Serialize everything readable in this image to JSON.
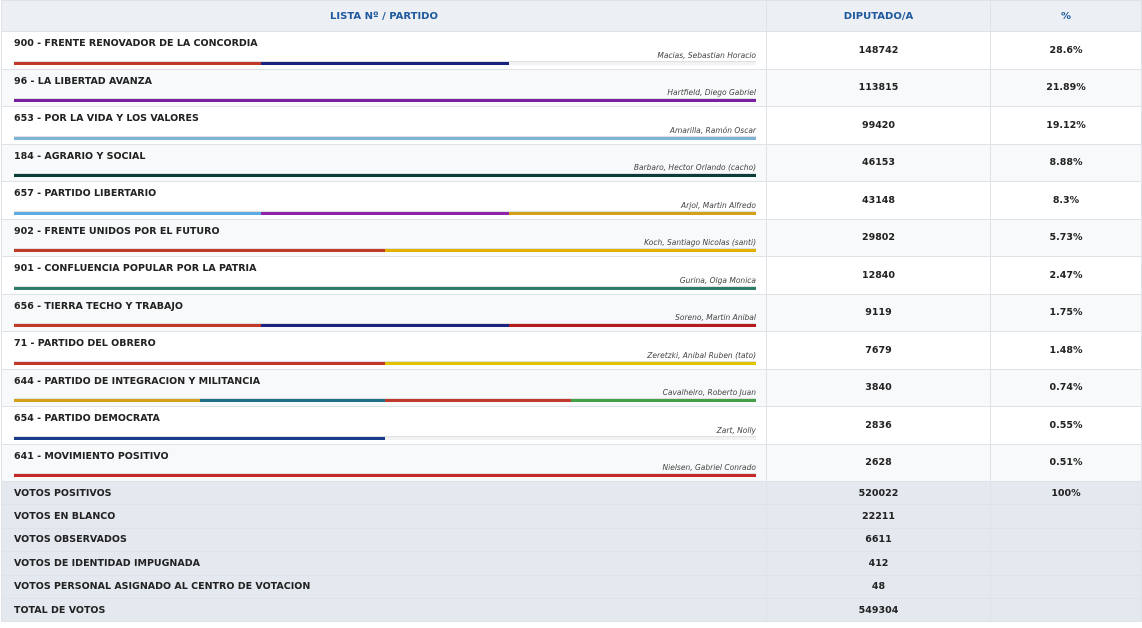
{
  "headers": {
    "party": "LISTA Nº / PARTIDO",
    "deputy": "DIPUTADO/A",
    "pct": "%"
  },
  "parties": [
    {
      "name": "900 - FRENTE RENOVADOR DE LA CONCORDIA",
      "candidate": "Macias, Sebastian Horacio",
      "votes": "148742",
      "pct": "28.6%",
      "colors": [
        "#c0392b",
        "#1a237e",
        "#f2f2f2"
      ]
    },
    {
      "name": "96 - LA LIBERTAD AVANZA",
      "candidate": "Hartfield, Diego Gabriel",
      "votes": "113815",
      "pct": "21.89%",
      "colors": [
        "#7b1fa2"
      ]
    },
    {
      "name": "653 - POR LA VIDA Y LOS VALORES",
      "candidate": "Amarilla, Ramón Oscar",
      "votes": "99420",
      "pct": "19.12%",
      "colors": [
        "#7fb3d5"
      ]
    },
    {
      "name": "184 - AGRARIO Y SOCIAL",
      "candidate": "Barbaro, Hector Orlando (cacho)",
      "votes": "46153",
      "pct": "8.88%",
      "colors": [
        "#0b3d3b"
      ]
    },
    {
      "name": "657 - PARTIDO LIBERTARIO",
      "candidate": "Arjol, Martin Alfredo",
      "votes": "43148",
      "pct": "8.3%",
      "colors": [
        "#5dade2",
        "#8e24aa",
        "#d4a017"
      ]
    },
    {
      "name": "902 - FRENTE UNIDOS POR EL FUTURO",
      "candidate": "Koch, Santiago Nicolas (santi)",
      "votes": "29802",
      "pct": "5.73%",
      "colors": [
        "#c0392b",
        "#e1b000"
      ]
    },
    {
      "name": "901 - CONFLUENCIA POPULAR POR LA PATRIA",
      "candidate": "Gurina, Olga Monica",
      "votes": "12840",
      "pct": "2.47%",
      "colors": [
        "#2e7d6b"
      ]
    },
    {
      "name": "656 - TIERRA TECHO Y TRABAJO",
      "candidate": "Soreno, Martin Anibal",
      "votes": "9119",
      "pct": "1.75%",
      "colors": [
        "#c0392b",
        "#1a237e",
        "#b71c1c"
      ]
    },
    {
      "name": "71 - PARTIDO DEL OBRERO",
      "candidate": "Zeretzki, Anibal Ruben (tato)",
      "votes": "7679",
      "pct": "1.48%",
      "colors": [
        "#c0392b",
        "#e1c400"
      ]
    },
    {
      "name": "644 - PARTIDO DE INTEGRACION Y MILITANCIA",
      "candidate": "Cavalheiro, Roberto Juan",
      "votes": "3840",
      "pct": "0.74%",
      "colors": [
        "#d4a017",
        "#1f6f8b",
        "#c0392b",
        "#43a047"
      ]
    },
    {
      "name": "654 - PARTIDO DEMOCRATA",
      "candidate": "Zart, Nolly",
      "votes": "2836",
      "pct": "0.55%",
      "colors": [
        "#1a3a8a",
        "#f2f2f2"
      ]
    },
    {
      "name": "641 - MOVIMIENTO POSITIVO",
      "candidate": "Nielsen, Gabriel Conrado",
      "votes": "2628",
      "pct": "0.51%",
      "colors": [
        "#c62828"
      ]
    }
  ],
  "totals": [
    {
      "label": "VOTOS POSITIVOS",
      "votes": "520022",
      "pct": "100%"
    },
    {
      "label": "VOTOS EN BLANCO",
      "votes": "22211",
      "pct": ""
    },
    {
      "label": "VOTOS OBSERVADOS",
      "votes": "6611",
      "pct": ""
    },
    {
      "label": "VOTOS DE IDENTIDAD IMPUGNADA",
      "votes": "412",
      "pct": ""
    },
    {
      "label": "VOTOS PERSONAL ASIGNADO AL CENTRO DE VOTACION",
      "votes": "48",
      "pct": ""
    },
    {
      "label": "TOTAL DE VOTOS",
      "votes": "549304",
      "pct": ""
    }
  ]
}
